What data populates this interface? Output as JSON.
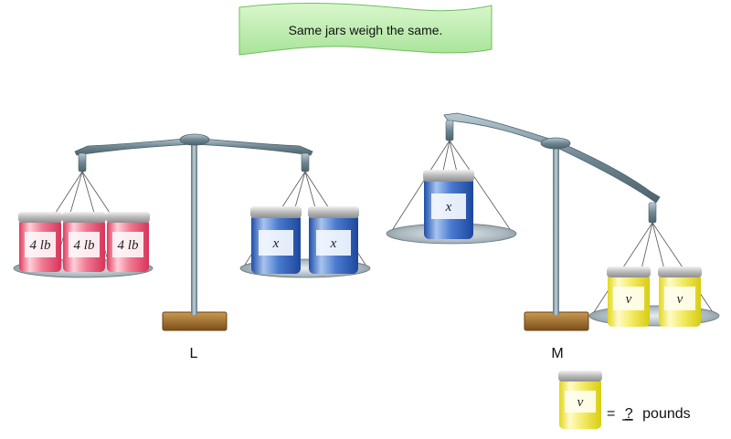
{
  "banner": {
    "text": "Same jars weigh the same."
  },
  "scale_L": {
    "name": "L",
    "left_pan": [
      {
        "label": "4 lb"
      },
      {
        "label": "4 lb"
      },
      {
        "label": "4 lb"
      }
    ],
    "right_pan": [
      {
        "label": "x"
      },
      {
        "label": "x"
      }
    ]
  },
  "scale_M": {
    "name": "M",
    "left_pan": [
      {
        "label": "x"
      }
    ],
    "right_pan": [
      {
        "label": "v"
      },
      {
        "label": "v"
      }
    ]
  },
  "legend": {
    "jar_label": "v",
    "equals": "=",
    "unknown": "?",
    "unit": "pounds"
  },
  "colors": {
    "red_jar": "#e8506e",
    "blue_jar": "#2d5fbf",
    "yellow_jar": "#e8e02a",
    "banner": "#c8f0b8",
    "metal": "#6f8793",
    "base": "#a06a28"
  }
}
